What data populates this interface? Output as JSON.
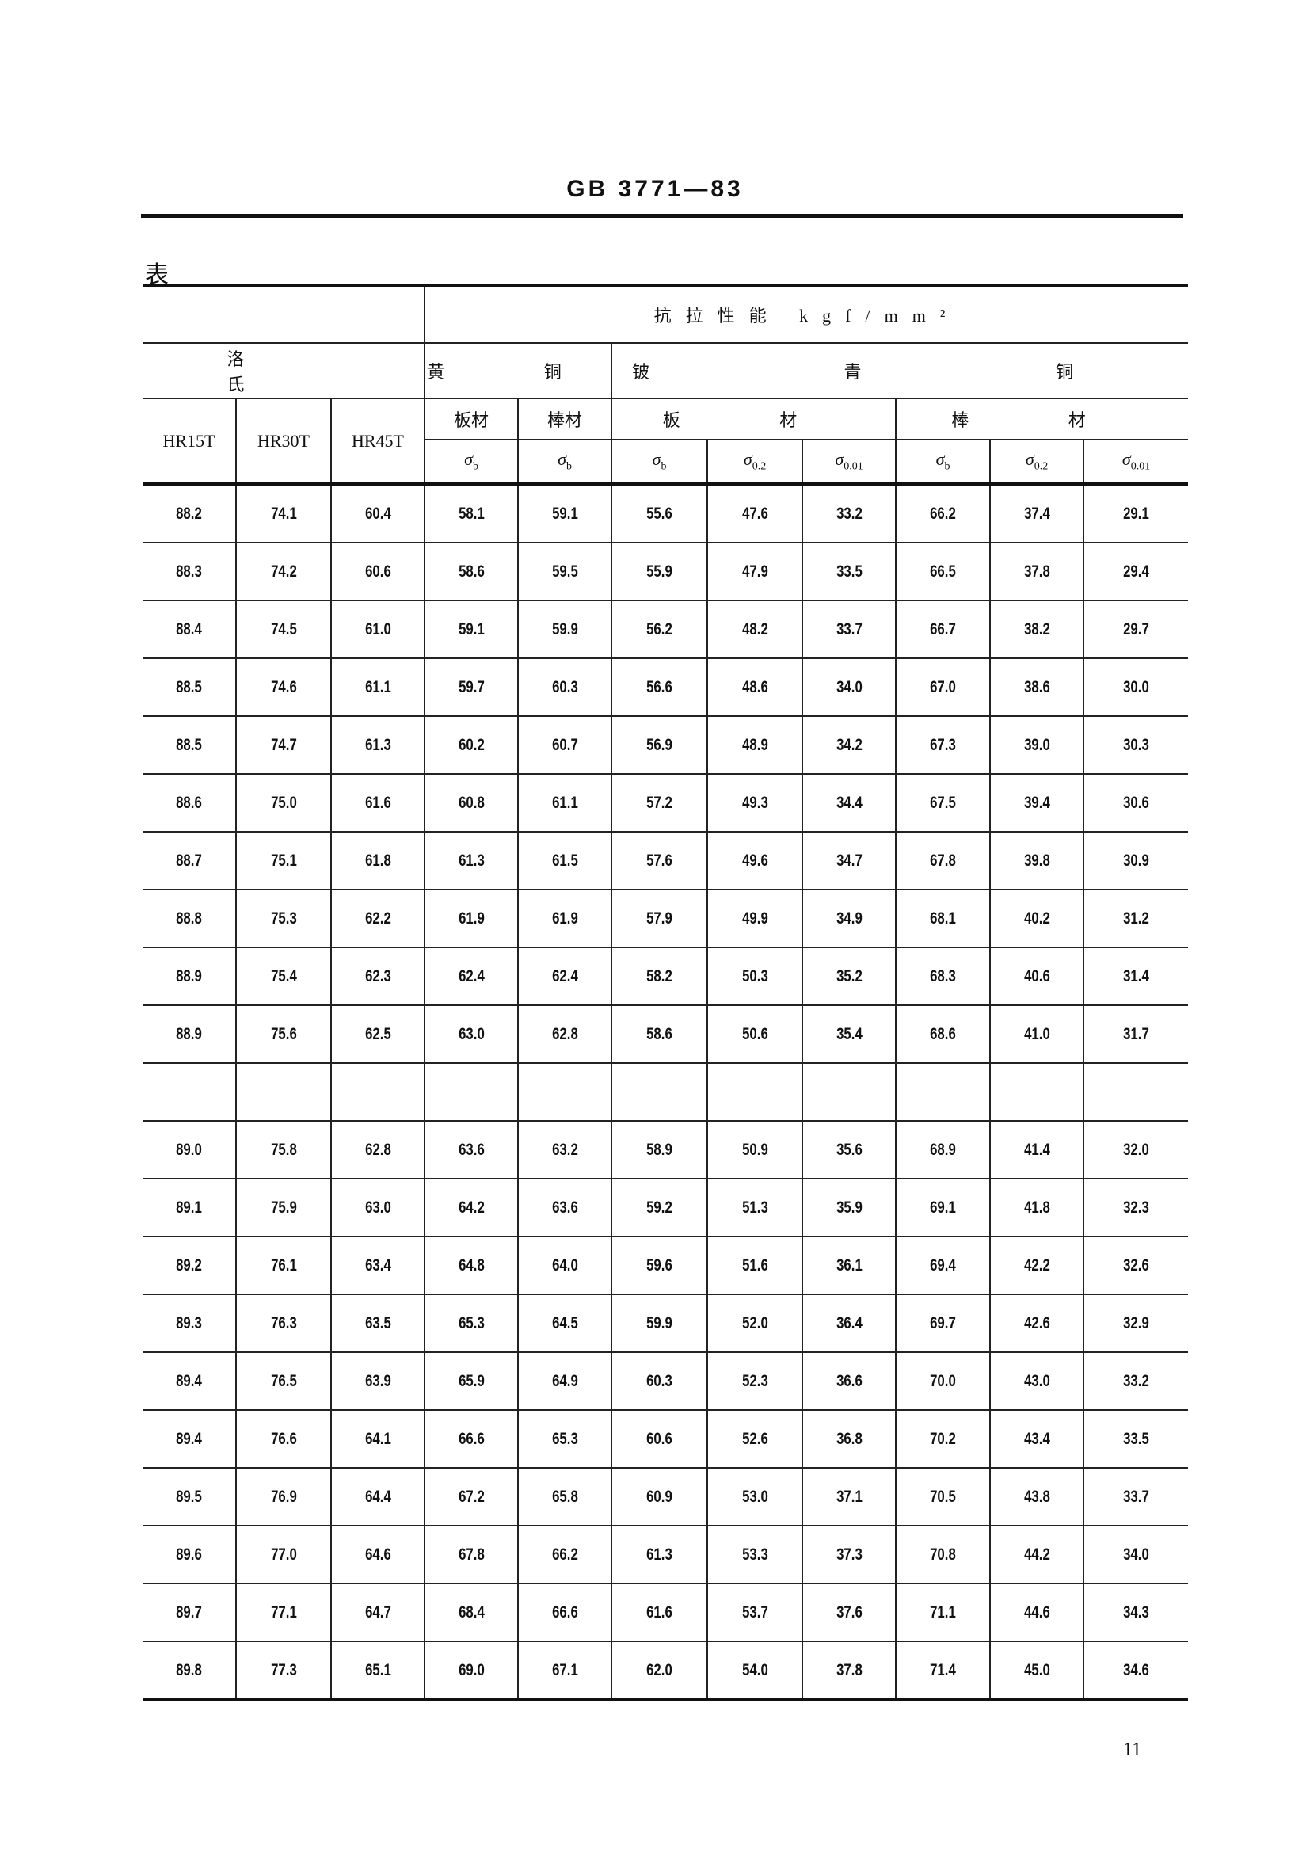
{
  "header": {
    "doc_code": "GB 3771—83"
  },
  "table_label": "表",
  "table": {
    "group_title": "抗拉性能 kgf/mm²",
    "rockwell_label": "洛 氏",
    "brass_label": "黄 铜",
    "beryllium_bronze_label": "铍 青 铜",
    "hardness_scales": [
      "HR15T",
      "HR30T",
      "HR45T"
    ],
    "brass_forms": [
      "板材",
      "棒材"
    ],
    "bronze_forms": [
      "板 材",
      "棒 材"
    ],
    "stress_symbols": [
      {
        "sym": "σ",
        "sub": "b"
      },
      {
        "sym": "σ",
        "sub": "b"
      },
      {
        "sym": "σ",
        "sub": "b"
      },
      {
        "sym": "σ",
        "sub": "0.2"
      },
      {
        "sym": "σ",
        "sub": "0.01"
      },
      {
        "sym": "σ",
        "sub": "b"
      },
      {
        "sym": "σ",
        "sub": "0.2"
      },
      {
        "sym": "σ",
        "sub": "0.01"
      }
    ],
    "rows": [
      [
        "88.2",
        "74.1",
        "60.4",
        "58.1",
        "59.1",
        "55.6",
        "47.6",
        "33.2",
        "66.2",
        "37.4",
        "29.1"
      ],
      [
        "88.3",
        "74.2",
        "60.6",
        "58.6",
        "59.5",
        "55.9",
        "47.9",
        "33.5",
        "66.5",
        "37.8",
        "29.4"
      ],
      [
        "88.4",
        "74.5",
        "61.0",
        "59.1",
        "59.9",
        "56.2",
        "48.2",
        "33.7",
        "66.7",
        "38.2",
        "29.7"
      ],
      [
        "88.5",
        "74.6",
        "61.1",
        "59.7",
        "60.3",
        "56.6",
        "48.6",
        "34.0",
        "67.0",
        "38.6",
        "30.0"
      ],
      [
        "88.5",
        "74.7",
        "61.3",
        "60.2",
        "60.7",
        "56.9",
        "48.9",
        "34.2",
        "67.3",
        "39.0",
        "30.3"
      ],
      [
        "88.6",
        "75.0",
        "61.6",
        "60.8",
        "61.1",
        "57.2",
        "49.3",
        "34.4",
        "67.5",
        "39.4",
        "30.6"
      ],
      [
        "88.7",
        "75.1",
        "61.8",
        "61.3",
        "61.5",
        "57.6",
        "49.6",
        "34.7",
        "67.8",
        "39.8",
        "30.9"
      ],
      [
        "88.8",
        "75.3",
        "62.2",
        "61.9",
        "61.9",
        "57.9",
        "49.9",
        "34.9",
        "68.1",
        "40.2",
        "31.2"
      ],
      [
        "88.9",
        "75.4",
        "62.3",
        "62.4",
        "62.4",
        "58.2",
        "50.3",
        "35.2",
        "68.3",
        "40.6",
        "31.4"
      ],
      [
        "88.9",
        "75.6",
        "62.5",
        "63.0",
        "62.8",
        "58.6",
        "50.6",
        "35.4",
        "68.6",
        "41.0",
        "31.7"
      ],
      [
        "",
        "",
        "",
        "",
        "",
        "",
        "",
        "",
        "",
        "",
        ""
      ],
      [
        "89.0",
        "75.8",
        "62.8",
        "63.6",
        "63.2",
        "58.9",
        "50.9",
        "35.6",
        "68.9",
        "41.4",
        "32.0"
      ],
      [
        "89.1",
        "75.9",
        "63.0",
        "64.2",
        "63.6",
        "59.2",
        "51.3",
        "35.9",
        "69.1",
        "41.8",
        "32.3"
      ],
      [
        "89.2",
        "76.1",
        "63.4",
        "64.8",
        "64.0",
        "59.6",
        "51.6",
        "36.1",
        "69.4",
        "42.2",
        "32.6"
      ],
      [
        "89.3",
        "76.3",
        "63.5",
        "65.3",
        "64.5",
        "59.9",
        "52.0",
        "36.4",
        "69.7",
        "42.6",
        "32.9"
      ],
      [
        "89.4",
        "76.5",
        "63.9",
        "65.9",
        "64.9",
        "60.3",
        "52.3",
        "36.6",
        "70.0",
        "43.0",
        "33.2"
      ],
      [
        "89.4",
        "76.6",
        "64.1",
        "66.6",
        "65.3",
        "60.6",
        "52.6",
        "36.8",
        "70.2",
        "43.4",
        "33.5"
      ],
      [
        "89.5",
        "76.9",
        "64.4",
        "67.2",
        "65.8",
        "60.9",
        "53.0",
        "37.1",
        "70.5",
        "43.8",
        "33.7"
      ],
      [
        "89.6",
        "77.0",
        "64.6",
        "67.8",
        "66.2",
        "61.3",
        "53.3",
        "37.3",
        "70.8",
        "44.2",
        "34.0"
      ],
      [
        "89.7",
        "77.1",
        "64.7",
        "68.4",
        "66.6",
        "61.6",
        "53.7",
        "37.6",
        "71.1",
        "44.6",
        "34.3"
      ],
      [
        "89.8",
        "77.3",
        "65.1",
        "69.0",
        "67.1",
        "62.0",
        "54.0",
        "37.8",
        "71.4",
        "45.0",
        "34.6"
      ]
    ]
  },
  "page_number": "11"
}
